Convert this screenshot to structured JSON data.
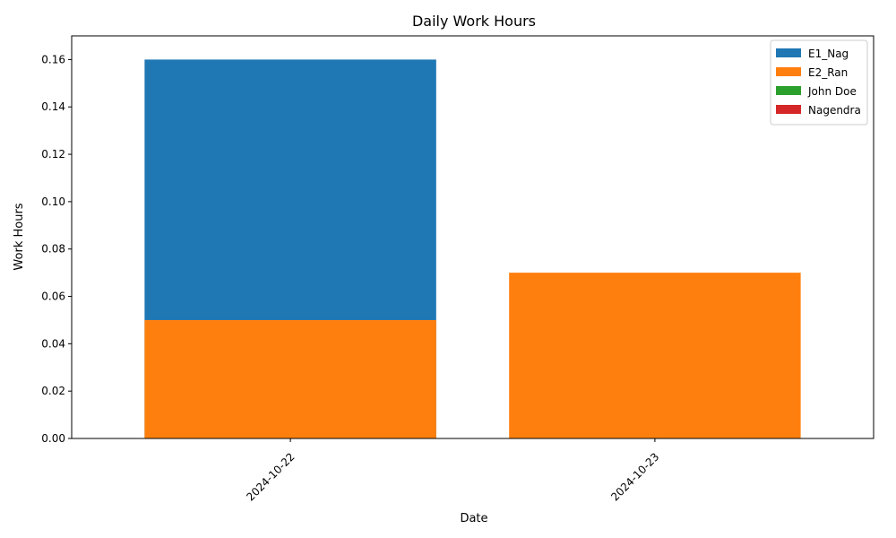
{
  "chart_data": {
    "type": "bar",
    "title": "Daily Work Hours",
    "xlabel": "Date",
    "ylabel": "Work Hours",
    "categories": [
      "2024-10-22",
      "2024-10-23"
    ],
    "ylim": [
      0,
      0.17
    ],
    "yticks": [
      "0.00",
      "0.02",
      "0.04",
      "0.06",
      "0.08",
      "0.10",
      "0.12",
      "0.14",
      "0.16"
    ],
    "series": [
      {
        "name": "E1_Nag",
        "color": "#1f77b4",
        "values": [
          0.16,
          0.0
        ]
      },
      {
        "name": "E2_Ran",
        "color": "#ff7f0e",
        "values": [
          0.05,
          0.07
        ]
      },
      {
        "name": "John Doe",
        "color": "#2ca02c",
        "values": [
          0.0,
          0.0
        ]
      },
      {
        "name": "Nagendra",
        "color": "#d62728",
        "values": [
          0.0,
          0.0
        ]
      }
    ],
    "legend_position": "top-right",
    "grid": false
  }
}
